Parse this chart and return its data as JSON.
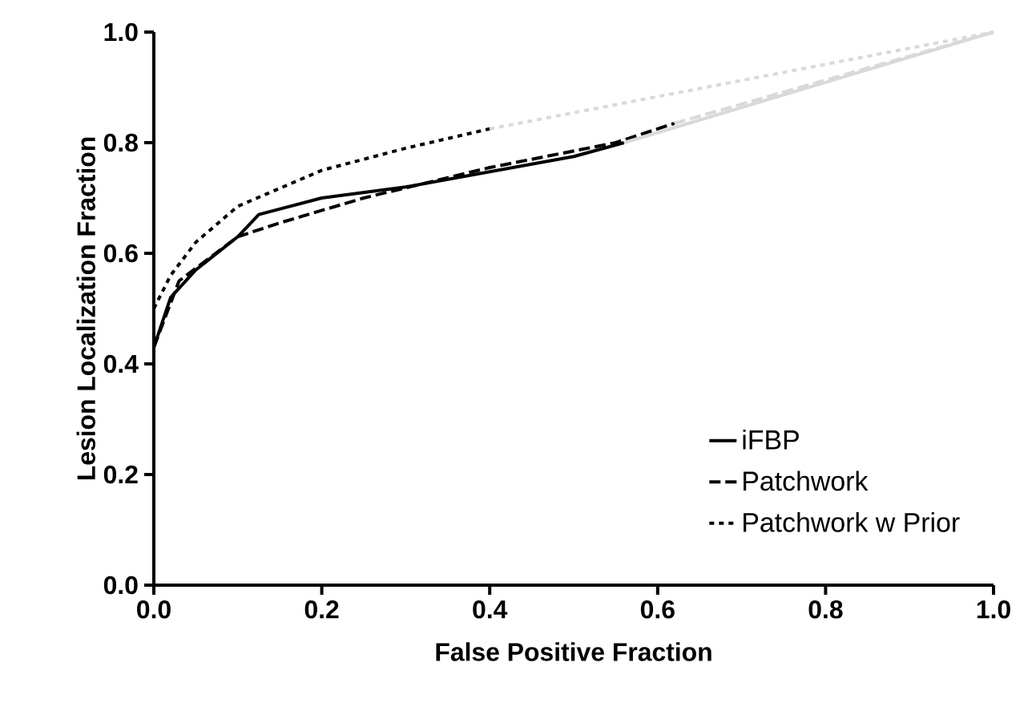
{
  "chart_data": {
    "type": "line",
    "xlabel": "False Positive Fraction",
    "ylabel": "Lesion Localization Fraction",
    "xlim": [
      0,
      1
    ],
    "ylim": [
      0,
      1
    ],
    "xticks": [
      {
        "value": 0,
        "label": "0.0"
      },
      0.2,
      0.4,
      0.6,
      0.8,
      {
        "value": 1,
        "label": "1.0"
      }
    ],
    "yticks": [
      {
        "value": 0,
        "label": "0.0"
      },
      0.2,
      0.4,
      0.6,
      0.8,
      {
        "value": 1,
        "label": "1.0"
      }
    ],
    "grid": false,
    "legend": "bottom right",
    "marker": "none",
    "series": [
      {
        "name": "iFBP",
        "color": "#000000",
        "line_style": "solid",
        "x": [
          0,
          0.02,
          0.05,
          0.1,
          0.125,
          0.2,
          0.3,
          0.5,
          0.56
        ],
        "values": [
          0.43,
          0.52,
          0.57,
          0.63,
          0.67,
          0.7,
          0.72,
          0.775,
          0.8
        ]
      },
      {
        "name": "Patchwork",
        "color": "#000000",
        "line_style": "dashed",
        "x": [
          0,
          0.03,
          0.1,
          0.15,
          0.25,
          0.4,
          0.55,
          0.62
        ],
        "values": [
          0.43,
          0.55,
          0.63,
          0.655,
          0.7,
          0.755,
          0.8,
          0.835
        ]
      },
      {
        "name": "Patchwork w Prior",
        "color": "#000000",
        "line_style": "dotted",
        "x": [
          0,
          0.02,
          0.05,
          0.1,
          0.2,
          0.3,
          0.4
        ],
        "values": [
          0.5,
          0.56,
          0.62,
          0.685,
          0.75,
          0.79,
          0.825
        ]
      },
      {
        "color": "#d9d9d9",
        "line_style": "solid",
        "x": [
          0.56,
          1
        ],
        "values": [
          0.8,
          1
        ]
      },
      {
        "color": "#d9d9d9",
        "line_style": "dashed",
        "x": [
          0.62,
          1
        ],
        "values": [
          0.835,
          1
        ]
      },
      {
        "color": "#d9d9d9",
        "line_style": "dotted",
        "x": [
          0.4,
          1
        ],
        "values": [
          0.825,
          1
        ]
      }
    ]
  }
}
